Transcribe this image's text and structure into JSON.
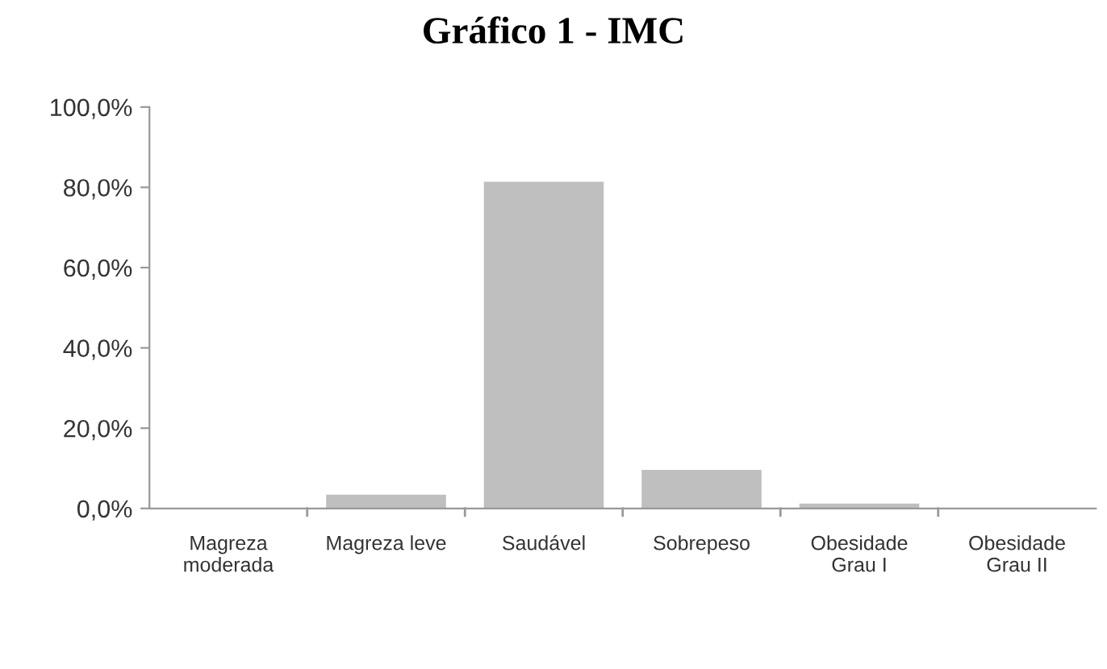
{
  "chart_data": {
    "type": "bar",
    "title": "Gráfico 1 - IMC",
    "categories": [
      "Magreza\nmoderada",
      "Magreza leve",
      "Saudável",
      "Sobrepeso",
      "Obesidade\nGrau I",
      "Obesidade\nGrau II"
    ],
    "values": [
      0,
      3.4,
      81.4,
      9.6,
      1.2,
      0
    ],
    "color": "#bfbfbf",
    "ylim": [
      0,
      100
    ],
    "yticks": [
      {
        "value": 0,
        "label": "0,0%"
      },
      {
        "value": 20,
        "label": "20,0%"
      },
      {
        "value": 40,
        "label": "40,0%"
      },
      {
        "value": 60,
        "label": "60,0%"
      },
      {
        "value": 80,
        "label": "80,0%"
      },
      {
        "value": 100,
        "label": "100,0%"
      }
    ],
    "grid": false,
    "legend": false
  }
}
